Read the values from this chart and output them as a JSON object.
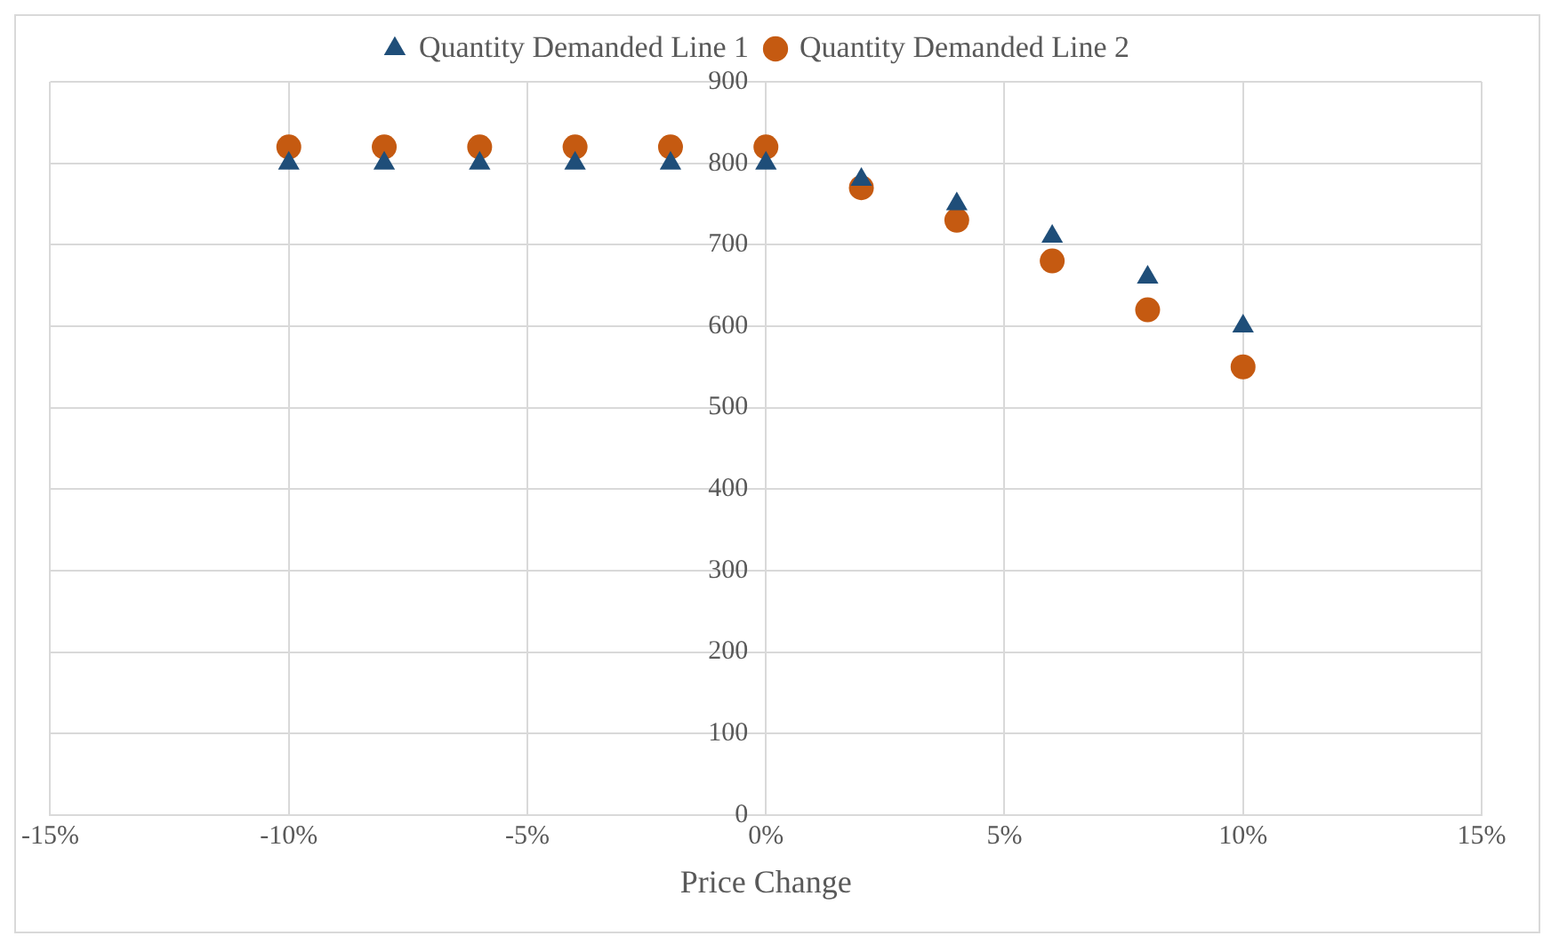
{
  "chart_data": {
    "type": "scatter",
    "xlabel": "Price Change",
    "x": [
      -10,
      -8,
      -6,
      -4,
      -2,
      0,
      2,
      4,
      6,
      8,
      10
    ],
    "series": [
      {
        "name": "Quantity Demanded Line 1",
        "color": "#1f4e79",
        "marker": "triangle",
        "values": [
          800,
          800,
          800,
          800,
          800,
          800,
          780,
          750,
          710,
          660,
          600
        ]
      },
      {
        "name": "Quantity Demanded Line 2",
        "color": "#c55a11",
        "marker": "circle",
        "values": [
          820,
          820,
          820,
          820,
          820,
          820,
          770,
          730,
          680,
          620,
          550
        ]
      }
    ],
    "xlim": [
      -15,
      15
    ],
    "xticks": [
      {
        "value": -15,
        "label": "-15%"
      },
      {
        "value": -10,
        "label": "-10%"
      },
      {
        "value": -5,
        "label": "-5%"
      },
      {
        "value": 0,
        "label": "0%"
      },
      {
        "value": 5,
        "label": "5%"
      },
      {
        "value": 10,
        "label": "10%"
      },
      {
        "value": 15,
        "label": "15%"
      }
    ],
    "ylim": [
      0,
      900
    ],
    "yticks": [
      0,
      100,
      200,
      300,
      400,
      500,
      600,
      700,
      800,
      900
    ],
    "grid": true,
    "legend": "top"
  }
}
